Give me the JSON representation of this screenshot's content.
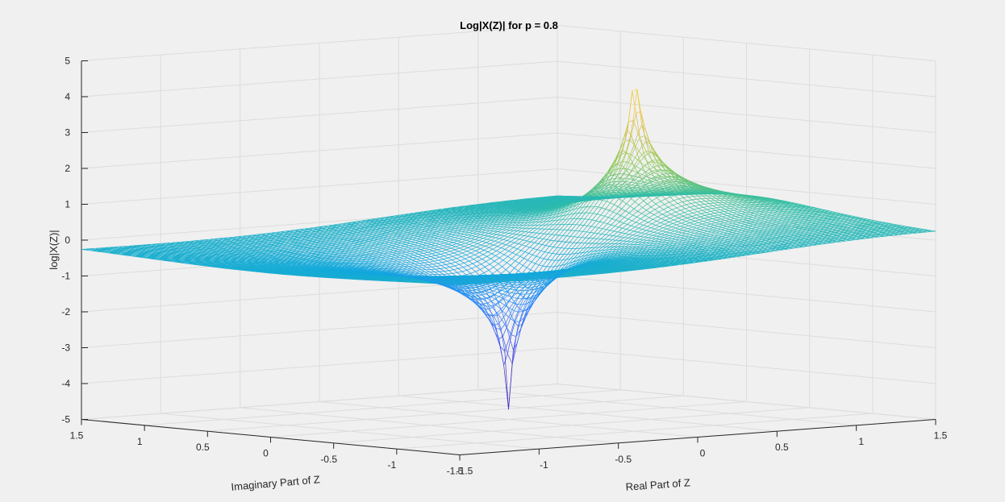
{
  "chart_data": {
    "type": "surface",
    "title": "Log|X(Z)| for p = 0.8",
    "xlabel": "Real Part of Z",
    "ylabel": "Imaginary Part of Z",
    "zlabel": "log|X(Z)|",
    "xlim": [
      -1.5,
      1.5
    ],
    "ylim": [
      -1.5,
      1.5
    ],
    "zlim": [
      -5,
      5
    ],
    "x_ticks": [
      "-1.5",
      "-1",
      "-0.5",
      "0",
      "0.5",
      "1",
      "1.5"
    ],
    "y_ticks": [
      "-1.5",
      "-1",
      "-0.5",
      "0",
      "0.5",
      "1",
      "1.5"
    ],
    "z_ticks": [
      "-5",
      "-4",
      "-3",
      "-2",
      "-1",
      "0",
      "1",
      "2",
      "3",
      "4",
      "5"
    ],
    "grid": true,
    "colormap": "parula",
    "surface_function": "log|Z/(Z-p)|",
    "p": 0.8,
    "pole": {
      "x": 0.8,
      "y": 0,
      "peak": 4.5
    },
    "zero": {
      "x": 0,
      "y": 0,
      "trough": -4.5
    },
    "mesh_resolution": 0.03
  }
}
